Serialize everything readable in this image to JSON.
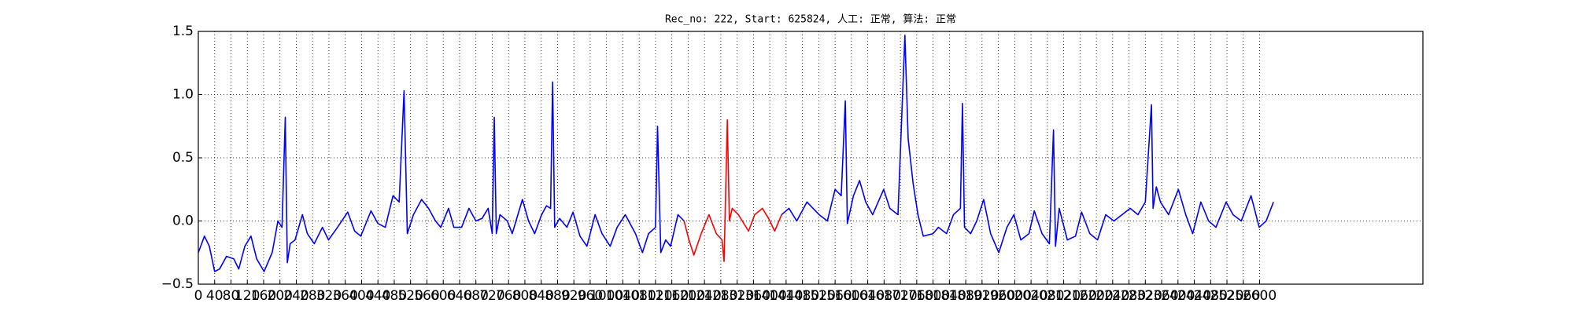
{
  "chart_data": {
    "type": "line",
    "title": "Rec_no: 222, Start: 625824, 人工: 正常, 算法: 正常",
    "x": [
      0,
      15,
      27,
      40,
      52,
      69,
      87,
      99,
      114,
      129,
      143,
      161,
      181,
      195,
      205,
      213,
      218,
      225,
      237,
      255,
      267,
      284,
      304,
      319,
      341,
      366,
      383,
      398,
      423,
      440,
      458,
      477,
      492,
      504,
      512,
      527,
      547,
      564,
      581,
      594,
      613,
      626,
      645,
      663,
      680,
      695,
      710,
      720,
      725,
      730,
      739,
      757,
      769,
      794,
      809,
      824,
      841,
      853,
      863,
      868,
      873,
      885,
      903,
      918,
      935,
      952,
      972,
      989,
      1009,
      1026,
      1046,
      1071,
      1088,
      1103,
      1120,
      1125,
      1133,
      1145,
      1157,
      1175,
      1190,
      1202,
      1214,
      1232,
      1251,
      1269,
      1283,
      1288,
      1296,
      1301,
      1308,
      1323,
      1348,
      1363,
      1382,
      1397,
      1412,
      1429,
      1447,
      1466,
      1491,
      1506,
      1521,
      1541,
      1560,
      1575,
      1585,
      1590,
      1605,
      1620,
      1635,
      1652,
      1679,
      1694,
      1714,
      1731,
      1739,
      1751,
      1763,
      1776,
      1800,
      1813,
      1833,
      1850,
      1867,
      1872,
      1877,
      1892,
      1907,
      1924,
      1941,
      1961,
      1981,
      1998,
      2015,
      2035,
      2048,
      2067,
      2085,
      2095,
      2100,
      2109,
      2129,
      2149,
      2164,
      2184,
      2203,
      2223,
      2243,
      2263,
      2283,
      2302,
      2320,
      2335,
      2339,
      2347,
      2357,
      2377,
      2401,
      2419,
      2436,
      2456,
      2475,
      2493,
      2518,
      2535,
      2555,
      2579,
      2599,
      2616,
      2634
    ],
    "series": [
      {
        "color": "#0000ff",
        "values": [
          -0.25,
          -0.12,
          -0.2,
          -0.4,
          -0.38,
          -0.28,
          -0.3,
          -0.38,
          -0.2,
          -0.12,
          -0.3,
          -0.4,
          -0.25,
          0.0,
          -0.05,
          0.82,
          -0.33,
          -0.18,
          -0.15,
          0.05,
          -0.1,
          -0.18,
          -0.05,
          -0.15,
          -0.05,
          0.07,
          -0.08,
          -0.12,
          0.08,
          -0.02,
          -0.05,
          0.2,
          0.15,
          1.03,
          -0.1,
          0.05,
          0.17,
          0.1,
          0.0,
          -0.05,
          0.1,
          -0.05,
          -0.05,
          0.1,
          0.0,
          0.02,
          0.1,
          -0.1,
          0.82,
          -0.1,
          0.05,
          0.0,
          -0.1,
          0.17,
          0.0,
          -0.1,
          0.05,
          0.12,
          0.1,
          1.1,
          -0.05,
          0.02,
          -0.05,
          0.07,
          -0.12,
          -0.2,
          0.05,
          -0.1,
          -0.2,
          -0.05,
          0.05,
          -0.1,
          -0.25,
          -0.1,
          -0.05,
          0.75,
          -0.25,
          -0.15,
          -0.2,
          0.05,
          0.0,
          null,
          null,
          null,
          null,
          null,
          null,
          null,
          null,
          null,
          null,
          null,
          null,
          null,
          null,
          null,
          null,
          0.05,
          0.1,
          0.0,
          0.15,
          0.1,
          0.05,
          0.0,
          0.25,
          0.2,
          0.95,
          -0.02,
          0.2,
          0.32,
          0.15,
          0.05,
          0.25,
          0.1,
          0.05,
          1.47,
          0.65,
          0.3,
          0.05,
          -0.12,
          -0.1,
          -0.05,
          -0.1,
          0.05,
          0.1,
          0.93,
          -0.05,
          -0.1,
          0.0,
          0.17,
          -0.1,
          -0.25,
          -0.05,
          0.05,
          -0.15,
          -0.1,
          0.08,
          -0.1,
          -0.18,
          0.72,
          -0.2,
          0.1,
          -0.15,
          -0.12,
          0.07,
          -0.1,
          -0.15,
          0.05,
          0.0,
          0.05,
          0.1,
          0.05,
          0.15,
          0.92,
          0.1,
          0.27,
          0.15,
          0.05,
          0.25,
          0.05,
          -0.1,
          0.15,
          0.0,
          -0.05,
          0.15,
          0.05,
          0.0,
          0.2,
          -0.05,
          0.0,
          0.15
        ]
      },
      {
        "color": "#ff0000",
        "values": [
          null,
          null,
          null,
          null,
          null,
          null,
          null,
          null,
          null,
          null,
          null,
          null,
          null,
          null,
          null,
          null,
          null,
          null,
          null,
          null,
          null,
          null,
          null,
          null,
          null,
          null,
          null,
          null,
          null,
          null,
          null,
          null,
          null,
          null,
          null,
          null,
          null,
          null,
          null,
          null,
          null,
          null,
          null,
          null,
          null,
          null,
          null,
          null,
          null,
          null,
          null,
          null,
          null,
          null,
          null,
          null,
          null,
          null,
          null,
          null,
          null,
          null,
          null,
          null,
          null,
          null,
          null,
          null,
          null,
          null,
          null,
          null,
          null,
          null,
          null,
          null,
          null,
          null,
          null,
          null,
          0.0,
          -0.15,
          -0.27,
          -0.1,
          0.05,
          -0.1,
          -0.15,
          -0.32,
          0.8,
          0.0,
          0.1,
          0.05,
          -0.08,
          0.05,
          0.1,
          0.02,
          -0.08,
          0.05,
          null,
          null,
          null,
          null,
          null,
          null,
          null,
          null,
          null,
          null,
          null,
          null,
          null,
          null,
          null,
          null,
          null,
          null,
          null,
          null,
          null,
          null,
          null,
          null,
          null,
          null,
          null,
          null,
          null,
          null,
          null,
          null,
          null,
          null,
          null,
          null,
          null,
          null,
          null,
          null,
          null,
          null,
          null,
          null,
          null,
          null,
          null,
          null,
          null,
          null,
          null,
          null,
          null,
          null,
          null,
          null,
          null,
          null,
          null,
          null,
          null,
          null,
          null,
          null,
          null,
          null,
          null,
          null,
          null,
          null,
          null,
          null,
          null
        ]
      }
    ],
    "xlim": [
      0,
      3000
    ],
    "xticks": [
      0,
      40,
      80,
      120,
      160,
      200,
      240,
      280,
      320,
      360,
      400,
      440,
      480,
      520,
      560,
      600,
      640,
      680,
      720,
      760,
      800,
      840,
      880,
      920,
      960,
      1000,
      1040,
      1080,
      1120,
      1160,
      1200,
      1240,
      1280,
      1320,
      1360,
      1400,
      1440,
      1480,
      1520,
      1560,
      1600,
      1640,
      1680,
      1720,
      1760,
      1800,
      1840,
      1880,
      1920,
      1960,
      2000,
      2040,
      2080,
      2120,
      2160,
      2200,
      2240,
      2280,
      2320,
      2360,
      2400,
      2440,
      2480,
      2520,
      2560,
      2600
    ],
    "ylim": [
      -0.5,
      1.5
    ],
    "yticks": [
      {
        "value": -0.5,
        "label": "−0.5"
      },
      {
        "value": 0,
        "label": "0.0"
      },
      {
        "value": 0.5,
        "label": "0.5"
      },
      {
        "value": 1,
        "label": "1.0"
      },
      {
        "value": 1.5,
        "label": "1.5"
      }
    ],
    "grid": true
  }
}
